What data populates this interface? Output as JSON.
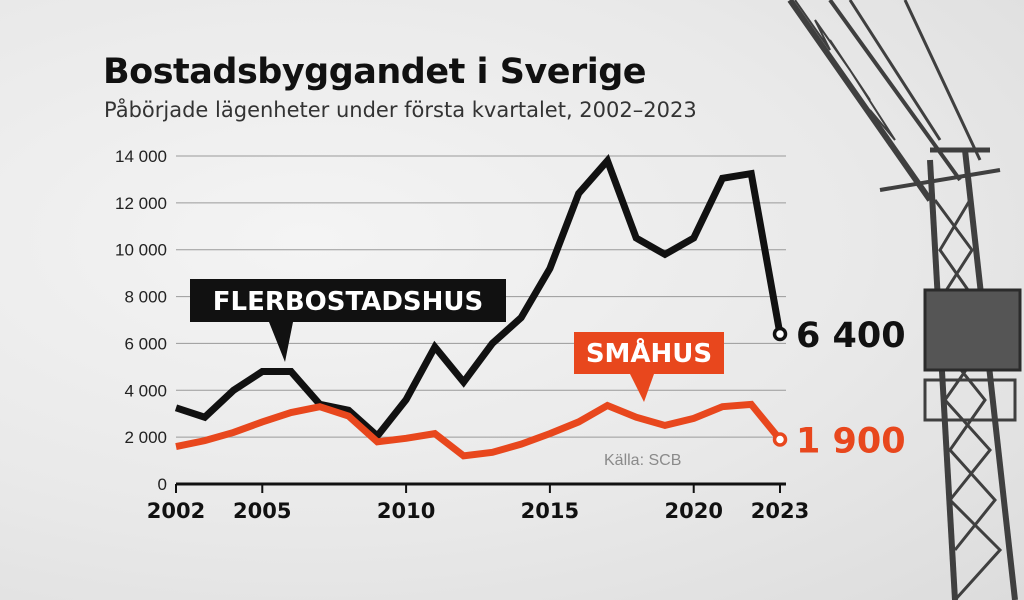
{
  "title": "Bostadsbyggandet i Sverige",
  "subtitle": "Påbörjade lägenheter under första kvartalet, 2002–2023",
  "source": "Källa: SCB",
  "colors": {
    "flerbostadshus": "#111111",
    "smahus": "#e8471d",
    "grid": "#9a9a9a"
  },
  "chart_data": {
    "type": "line",
    "x": [
      2002,
      2003,
      2004,
      2005,
      2006,
      2007,
      2008,
      2009,
      2010,
      2011,
      2012,
      2013,
      2014,
      2015,
      2016,
      2017,
      2018,
      2019,
      2020,
      2021,
      2022,
      2023
    ],
    "xticks": [
      "2002",
      "2005",
      "2010",
      "2015",
      "2020",
      "2023"
    ],
    "yticks": [
      "0",
      "2 000",
      "4 000",
      "6 000",
      "8 000",
      "10 000",
      "12 000",
      "14 000"
    ],
    "ylim": [
      0,
      14000
    ],
    "grid": true,
    "series": [
      {
        "name": "FLERBOSTADSHUS",
        "values": [
          3250,
          2850,
          4000,
          4800,
          4800,
          3400,
          3150,
          2050,
          3600,
          5850,
          4350,
          6000,
          7100,
          9200,
          12400,
          13800,
          10500,
          9800,
          10500,
          13050,
          13250,
          6400
        ],
        "end_label": "6 400"
      },
      {
        "name": "SMÅHUS",
        "values": [
          1600,
          1850,
          2200,
          2650,
          3050,
          3300,
          2900,
          1800,
          1950,
          2150,
          1200,
          1350,
          1700,
          2150,
          2650,
          3350,
          2850,
          2500,
          2800,
          3300,
          3400,
          1900
        ],
        "end_label": "1 900"
      }
    ]
  }
}
